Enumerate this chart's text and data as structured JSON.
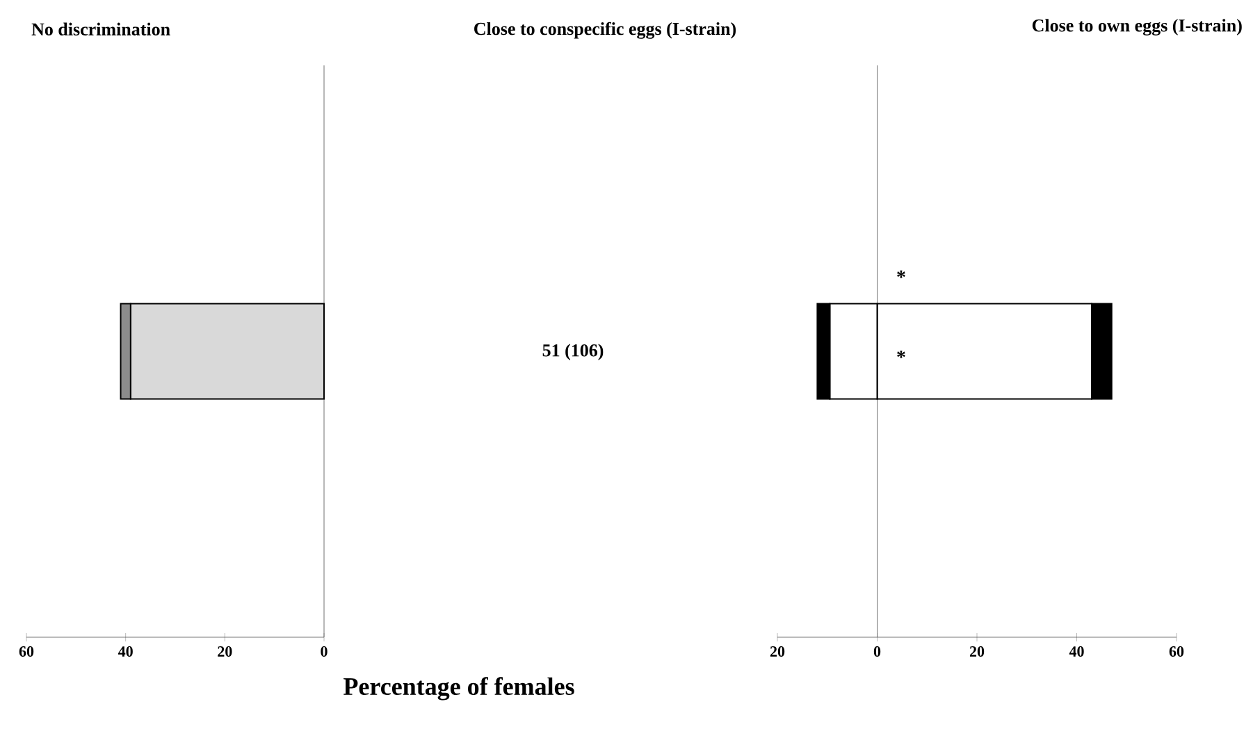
{
  "chart_data": [
    {
      "type": "bar",
      "orientation": "horizontal",
      "stacked": true,
      "title": "No discrimination",
      "xlabel": "Percentage of females",
      "categories": [
        null
      ],
      "series": [
        {
          "color": "#d9d9d9",
          "values": [
            39
          ]
        },
        {
          "color": "#8c8c8c",
          "values": [
            2
          ]
        }
      ],
      "xlim": [
        60,
        0
      ],
      "xticks": [
        60,
        40,
        20,
        0
      ]
    },
    {
      "type": "other",
      "title": "Close to conspecific eggs (I-strain)",
      "annotations": [
        "51 (106)"
      ]
    },
    {
      "type": "bar",
      "orientation": "horizontal",
      "stacked": true,
      "title": "Close to own eggs (I-strain)",
      "categories": [
        null
      ],
      "series": [
        {
          "color": "#ffffff",
          "values": [
            43
          ]
        },
        {
          "color": "#000000",
          "values": [
            4
          ]
        },
        {
          "color": "#ffffff",
          "values": [
            -9.5
          ]
        },
        {
          "color": "#000000",
          "values": [
            -2.5
          ]
        }
      ],
      "xlim": [
        -20,
        60
      ],
      "xticks": [
        {
          "value": -20,
          "label": "20"
        },
        0,
        20,
        40,
        60
      ],
      "annotations": [
        "*",
        "*"
      ]
    }
  ]
}
